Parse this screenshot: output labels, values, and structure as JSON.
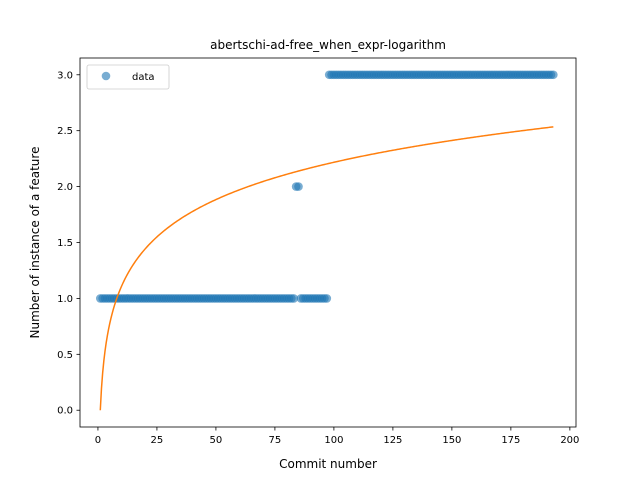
{
  "chart_data": {
    "type": "scatter",
    "title": "abertschi-ad-free_when_expr-logarithm",
    "xlabel": "Commit number",
    "ylabel": "Number of instance of a feature",
    "xlim": [
      -7.6,
      202.6
    ],
    "ylim": [
      -0.15,
      3.15
    ],
    "xticks": [
      0,
      25,
      50,
      75,
      100,
      125,
      150,
      175,
      200
    ],
    "yticks": [
      0.0,
      0.5,
      1.0,
      1.5,
      2.0,
      2.5,
      3.0
    ],
    "xtick_labels": [
      "0",
      "25",
      "50",
      "75",
      "100",
      "125",
      "150",
      "175",
      "200"
    ],
    "ytick_labels": [
      "0.0",
      "0.5",
      "1.0",
      "1.5",
      "2.0",
      "2.5",
      "3.0"
    ],
    "grid": false,
    "legend": {
      "position": "top-left",
      "entries": [
        "data"
      ]
    },
    "series": [
      {
        "name": "data",
        "kind": "scatter",
        "color": "#1f77b4",
        "segments": [
          {
            "x_start": 1,
            "x_end": 83,
            "y": 1
          },
          {
            "x_start": 84,
            "x_end": 85,
            "y": 2
          },
          {
            "x_start": 86,
            "x_end": 97,
            "y": 1
          },
          {
            "x_start": 98,
            "x_end": 193,
            "y": 3
          }
        ]
      },
      {
        "kind": "line",
        "color": "#ff7f0e",
        "model": "logarithmic",
        "coefficients": {
          "a": 0.4815,
          "b": 0.0
        },
        "x_range": [
          1,
          193
        ]
      }
    ]
  }
}
